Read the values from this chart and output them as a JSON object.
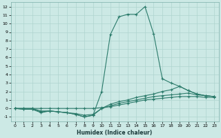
{
  "xlabel": "Humidex (Indice chaleur)",
  "xlim": [
    -0.5,
    23.5
  ],
  "ylim": [
    -1.5,
    12.5
  ],
  "xticks": [
    0,
    1,
    2,
    3,
    4,
    5,
    6,
    7,
    8,
    9,
    10,
    11,
    12,
    13,
    14,
    15,
    16,
    17,
    18,
    19,
    20,
    21,
    22,
    23
  ],
  "yticks": [
    -1,
    0,
    1,
    2,
    3,
    4,
    5,
    6,
    7,
    8,
    9,
    10,
    11,
    12
  ],
  "bg_color": "#cce9e5",
  "line_color": "#2a7a6a",
  "grid_color": "#aed4cf",
  "line1_x": [
    0,
    1,
    2,
    3,
    4,
    5,
    6,
    7,
    8,
    9,
    10,
    11,
    12,
    13,
    14,
    15,
    16,
    17,
    18,
    19,
    20,
    21,
    22,
    23
  ],
  "line1_y": [
    0.0,
    0.0,
    0.0,
    0.0,
    0.0,
    0.0,
    0.0,
    0.0,
    0.0,
    0.0,
    0.1,
    0.2,
    0.4,
    0.6,
    0.8,
    1.0,
    1.1,
    1.2,
    1.3,
    1.4,
    1.4,
    1.4,
    1.3,
    1.3
  ],
  "line2_x": [
    0,
    1,
    2,
    3,
    4,
    5,
    6,
    7,
    8,
    9,
    10,
    11,
    12,
    13,
    14,
    15,
    16,
    17,
    18,
    19,
    20,
    21,
    22,
    23
  ],
  "line2_y": [
    0.0,
    0.0,
    0.0,
    -0.3,
    -0.3,
    -0.4,
    -0.5,
    -0.6,
    -0.8,
    -0.7,
    0.0,
    0.3,
    0.6,
    0.8,
    1.0,
    1.2,
    1.4,
    1.5,
    1.6,
    1.7,
    1.8,
    1.6,
    1.5,
    1.4
  ],
  "line3_x": [
    0,
    1,
    2,
    3,
    4,
    5,
    6,
    7,
    8,
    9,
    10,
    11,
    12,
    13,
    14,
    15,
    16,
    17,
    18,
    19,
    20,
    21,
    22,
    23
  ],
  "line3_y": [
    0.0,
    -0.1,
    -0.1,
    -0.5,
    -0.3,
    -0.4,
    -0.5,
    -0.7,
    -1.0,
    -0.8,
    0.0,
    0.5,
    0.8,
    1.0,
    1.3,
    1.5,
    1.7,
    2.0,
    2.2,
    2.6,
    2.1,
    1.7,
    1.5,
    1.4
  ],
  "line4_x": [
    0,
    1,
    2,
    3,
    4,
    5,
    6,
    7,
    8,
    9,
    10,
    11,
    12,
    13,
    14,
    15,
    16,
    17,
    18,
    19,
    20,
    21,
    22,
    23
  ],
  "line4_y": [
    0.0,
    -0.1,
    -0.1,
    -0.4,
    -0.3,
    -0.4,
    -0.5,
    -0.7,
    -1.0,
    -0.8,
    2.0,
    8.7,
    10.8,
    11.1,
    11.1,
    12.0,
    8.8,
    3.5,
    3.0,
    2.6,
    2.1,
    1.7,
    1.5,
    1.4
  ]
}
